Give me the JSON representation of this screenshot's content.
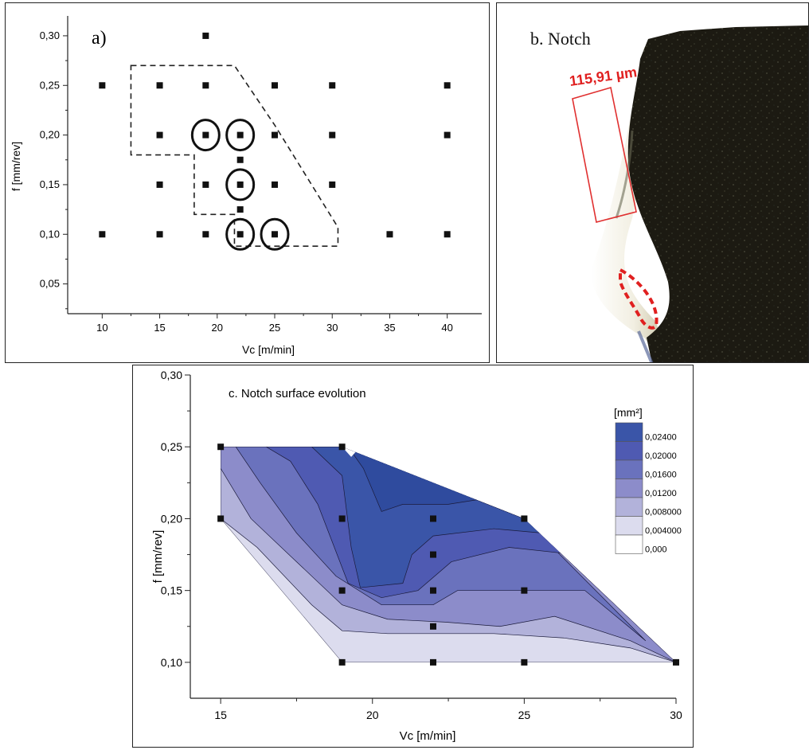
{
  "panel_a": {
    "label": "a)",
    "chart_data": {
      "type": "scatter",
      "xlabel": "Vc [m/min]",
      "ylabel": "f [mm/rev]",
      "xlim": [
        7,
        43
      ],
      "ylim": [
        0.02,
        0.32
      ],
      "xticks": [
        10,
        15,
        20,
        25,
        30,
        35,
        40
      ],
      "xtick_labels": [
        "10",
        "15",
        "20",
        "25",
        "30",
        "35",
        "40"
      ],
      "yticks": [
        0.05,
        0.1,
        0.15,
        0.2,
        0.25,
        0.3
      ],
      "ytick_labels": [
        "0,05",
        "0,10",
        "0,15",
        "0,20",
        "0,25",
        "0,30"
      ],
      "points": [
        [
          19,
          0.3
        ],
        [
          10,
          0.25
        ],
        [
          15,
          0.25
        ],
        [
          19,
          0.25
        ],
        [
          25,
          0.25
        ],
        [
          30,
          0.25
        ],
        [
          40,
          0.25
        ],
        [
          15,
          0.2
        ],
        [
          19,
          0.2
        ],
        [
          22,
          0.2
        ],
        [
          25,
          0.2
        ],
        [
          30,
          0.2
        ],
        [
          40,
          0.2
        ],
        [
          22,
          0.175
        ],
        [
          15,
          0.15
        ],
        [
          19,
          0.15
        ],
        [
          22,
          0.15
        ],
        [
          25,
          0.15
        ],
        [
          30,
          0.15
        ],
        [
          22,
          0.125
        ],
        [
          10,
          0.1
        ],
        [
          15,
          0.1
        ],
        [
          19,
          0.1
        ],
        [
          22,
          0.1
        ],
        [
          25,
          0.1
        ],
        [
          35,
          0.1
        ],
        [
          40,
          0.1
        ]
      ],
      "circled_points": [
        [
          19,
          0.2
        ],
        [
          22,
          0.2
        ],
        [
          22,
          0.15
        ],
        [
          22,
          0.1
        ],
        [
          25,
          0.1
        ]
      ],
      "dashed_region": [
        [
          12.5,
          0.27
        ],
        [
          21.5,
          0.27
        ],
        [
          25,
          0.21
        ],
        [
          30.5,
          0.107
        ],
        [
          30.5,
          0.088
        ],
        [
          21.5,
          0.088
        ],
        [
          21.5,
          0.12
        ],
        [
          18,
          0.12
        ],
        [
          18,
          0.18
        ],
        [
          12.5,
          0.18
        ]
      ],
      "grid": false
    }
  },
  "panel_b": {
    "label": "b. Notch",
    "measurement": "115,91 µm",
    "colors": {
      "surface": "#1c1a12",
      "edge": "#e8e2c8",
      "annotation": "#e02020"
    }
  },
  "panel_c": {
    "title": "c. Notch surface evolution",
    "chart_data": {
      "type": "contour",
      "xlabel": "Vc [m/min]",
      "ylabel": "f [mm/rev]",
      "xlim": [
        14,
        30
      ],
      "ylim": [
        0.075,
        0.3
      ],
      "xticks": [
        15,
        20,
        25,
        30
      ],
      "xtick_labels": [
        "15",
        "20",
        "25",
        "30"
      ],
      "yticks": [
        0.1,
        0.15,
        0.2,
        0.25,
        0.3
      ],
      "ytick_labels": [
        "0,10",
        "0,15",
        "0,20",
        "0,25",
        "0,30"
      ],
      "points": [
        [
          15,
          0.25
        ],
        [
          19,
          0.25
        ],
        [
          15,
          0.2
        ],
        [
          19,
          0.2
        ],
        [
          22,
          0.2
        ],
        [
          25,
          0.2
        ],
        [
          22,
          0.175
        ],
        [
          19,
          0.15
        ],
        [
          22,
          0.15
        ],
        [
          25,
          0.15
        ],
        [
          22,
          0.125
        ],
        [
          19,
          0.1
        ],
        [
          22,
          0.1
        ],
        [
          25,
          0.1
        ],
        [
          30,
          0.1
        ]
      ],
      "hull": [
        [
          15,
          0.25
        ],
        [
          19,
          0.25
        ],
        [
          25,
          0.2
        ],
        [
          30,
          0.1
        ],
        [
          19,
          0.1
        ],
        [
          15,
          0.2
        ]
      ],
      "levels": [
        {
          "value": 0.0,
          "label": "0,000",
          "color": "#ffffff"
        },
        {
          "value": 0.004,
          "label": "0,004000",
          "color": "#dcdcee"
        },
        {
          "value": 0.008,
          "label": "0,008000",
          "color": "#b2b2da"
        },
        {
          "value": 0.012,
          "label": "0,01200",
          "color": "#8c8cca"
        },
        {
          "value": 0.016,
          "label": "0,01600",
          "color": "#6a72bd"
        },
        {
          "value": 0.02,
          "label": "0,02000",
          "color": "#4f5ab2"
        },
        {
          "value": 0.024,
          "label": "0,02400",
          "color": "#3a55a8"
        }
      ],
      "legend_title": "[mm²]",
      "legend_position": "top-right"
    }
  }
}
